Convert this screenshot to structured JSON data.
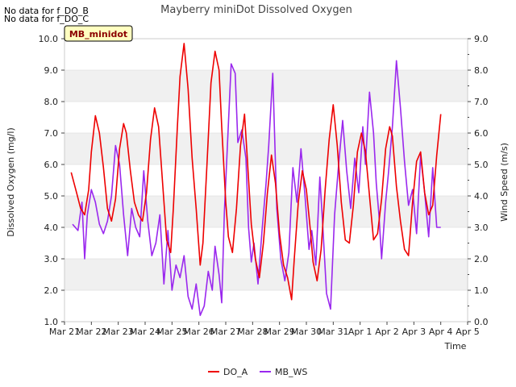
{
  "notes": [
    "No data for f_DO_B",
    "No data for f_DO_C"
  ],
  "site_label": "MB_minidot",
  "colors": {
    "do_a": "#ee0000",
    "mb_ws": "#9a28ee",
    "band": "#f0f0f0",
    "grid": "#d6d6d6",
    "site_box_fill": "#ffffc0"
  },
  "chart_data": {
    "type": "line",
    "title": "Mayberry miniDot Dissolved Oxygen",
    "xlabel": "Time",
    "ylabel": "Dissolved Oxygen (mg/l)",
    "y2label": "Wind Speed (m/s)",
    "x_ticks": [
      "Mar 21",
      "Mar 22",
      "Mar 23",
      "Mar 24",
      "Mar 25",
      "Mar 26",
      "Mar 27",
      "Mar 28",
      "Mar 29",
      "Mar 30",
      "Mar 31",
      "Apr 1",
      "Apr 2",
      "Apr 3",
      "Apr 4",
      "Apr 5"
    ],
    "xlim": [
      0,
      15
    ],
    "ylim": [
      1.0,
      10.0
    ],
    "y2lim": [
      0.0,
      9.0
    ],
    "y_ticks": [
      "1.0",
      "2.0",
      "3.0",
      "4.0",
      "5.0",
      "6.0",
      "7.0",
      "8.0",
      "9.0",
      "10.0"
    ],
    "y2_ticks": [
      "0.0",
      "1.0",
      "2.0",
      "3.0",
      "4.0",
      "5.0",
      "6.0",
      "7.0",
      "8.0",
      "9.0"
    ],
    "legend_position": "bottom-center",
    "series": [
      {
        "name": "DO_A",
        "axis": "left",
        "x": [
          0.25,
          0.45,
          0.6,
          0.75,
          0.9,
          1.0,
          1.15,
          1.3,
          1.45,
          1.6,
          1.75,
          1.9,
          2.05,
          2.2,
          2.3,
          2.45,
          2.6,
          2.75,
          2.9,
          3.05,
          3.2,
          3.35,
          3.5,
          3.65,
          3.8,
          3.95,
          4.05,
          4.2,
          4.3,
          4.45,
          4.6,
          4.75,
          4.9,
          5.05,
          5.15,
          5.3,
          5.45,
          5.6,
          5.75,
          5.85,
          6.0,
          6.1,
          6.25,
          6.4,
          6.55,
          6.7,
          6.8,
          6.95,
          7.1,
          7.25,
          7.4,
          7.55,
          7.7,
          7.85,
          8.0,
          8.15,
          8.3,
          8.45,
          8.55,
          8.7,
          8.85,
          9.0,
          9.15,
          9.25,
          9.4,
          9.55,
          9.7,
          9.85,
          10.0,
          10.15,
          10.3,
          10.45,
          10.6,
          10.75,
          10.9,
          11.05,
          11.2,
          11.35,
          11.5,
          11.65,
          11.8,
          11.95,
          12.1,
          12.2,
          12.35,
          12.5,
          12.65,
          12.8,
          12.95,
          13.1,
          13.25,
          13.4,
          13.55,
          13.7,
          13.85,
          14.0
        ],
        "y": [
          5.75,
          5.1,
          4.6,
          4.4,
          5.2,
          6.4,
          7.55,
          7.0,
          5.9,
          4.6,
          4.2,
          4.9,
          6.5,
          7.3,
          7.0,
          5.8,
          4.8,
          4.4,
          4.2,
          5.1,
          6.8,
          7.8,
          7.2,
          5.4,
          3.6,
          3.2,
          4.6,
          7.2,
          8.8,
          9.85,
          8.4,
          6.2,
          4.6,
          2.8,
          3.5,
          6.0,
          8.6,
          9.6,
          9.0,
          7.2,
          4.8,
          3.7,
          3.2,
          4.6,
          6.6,
          7.6,
          6.2,
          4.1,
          3.0,
          2.4,
          3.5,
          5.1,
          6.3,
          5.4,
          3.8,
          2.8,
          2.4,
          1.7,
          3.0,
          4.8,
          5.8,
          5.2,
          3.9,
          2.9,
          2.3,
          3.3,
          5.2,
          6.8,
          7.9,
          6.6,
          4.8,
          3.6,
          3.5,
          4.7,
          6.4,
          7.0,
          6.4,
          5.0,
          3.6,
          3.8,
          4.9,
          6.5,
          7.2,
          6.9,
          5.3,
          4.2,
          3.3,
          3.1,
          4.8,
          6.1,
          6.4,
          5.1,
          4.4,
          4.7,
          6.3,
          7.6
        ]
      },
      {
        "name": "MB_WS",
        "axis": "right",
        "x": [
          0.3,
          0.5,
          0.65,
          0.75,
          0.85,
          1.0,
          1.15,
          1.3,
          1.45,
          1.6,
          1.75,
          1.9,
          2.05,
          2.2,
          2.35,
          2.5,
          2.65,
          2.8,
          2.95,
          3.1,
          3.25,
          3.4,
          3.55,
          3.7,
          3.85,
          4.0,
          4.15,
          4.3,
          4.45,
          4.6,
          4.75,
          4.9,
          5.05,
          5.2,
          5.35,
          5.5,
          5.6,
          5.75,
          5.85,
          5.95,
          6.05,
          6.2,
          6.35,
          6.45,
          6.6,
          6.75,
          6.85,
          6.95,
          7.05,
          7.2,
          7.35,
          7.5,
          7.6,
          7.75,
          7.9,
          8.05,
          8.2,
          8.35,
          8.5,
          8.65,
          8.8,
          8.95,
          9.1,
          9.2,
          9.35,
          9.5,
          9.6,
          9.75,
          9.9,
          10.05,
          10.2,
          10.35,
          10.5,
          10.65,
          10.8,
          10.95,
          11.1,
          11.2,
          11.35,
          11.5,
          11.6,
          11.7,
          11.8,
          11.95,
          12.05,
          12.2,
          12.35,
          12.5,
          12.65,
          12.8,
          12.95,
          13.1,
          13.25,
          13.4,
          13.55,
          13.7,
          13.85,
          14.0
        ],
        "y": [
          3.1,
          2.9,
          3.8,
          2.0,
          3.4,
          4.2,
          3.8,
          3.1,
          2.8,
          3.2,
          4.0,
          5.6,
          5.0,
          3.4,
          2.1,
          3.6,
          3.0,
          2.7,
          4.8,
          3.2,
          2.1,
          2.5,
          3.4,
          1.2,
          2.9,
          1.0,
          1.8,
          1.4,
          2.1,
          0.8,
          0.4,
          1.2,
          0.2,
          0.5,
          1.6,
          1.0,
          2.4,
          1.5,
          0.6,
          3.5,
          5.4,
          8.2,
          7.9,
          5.7,
          6.1,
          5.2,
          3.0,
          1.9,
          2.5,
          1.2,
          2.9,
          4.4,
          5.6,
          7.9,
          3.6,
          2.0,
          1.3,
          2.2,
          4.9,
          3.8,
          5.5,
          4.0,
          2.3,
          2.9,
          1.8,
          4.6,
          3.2,
          0.9,
          0.4,
          3.4,
          5.0,
          6.4,
          4.8,
          3.6,
          5.2,
          4.1,
          6.2,
          5.0,
          7.3,
          6.0,
          4.4,
          3.4,
          2.0,
          3.8,
          4.7,
          6.2,
          8.3,
          6.8,
          5.1,
          3.7,
          4.2,
          2.8,
          5.3,
          4.1,
          2.7,
          4.9,
          3.0,
          3.0
        ]
      }
    ]
  }
}
